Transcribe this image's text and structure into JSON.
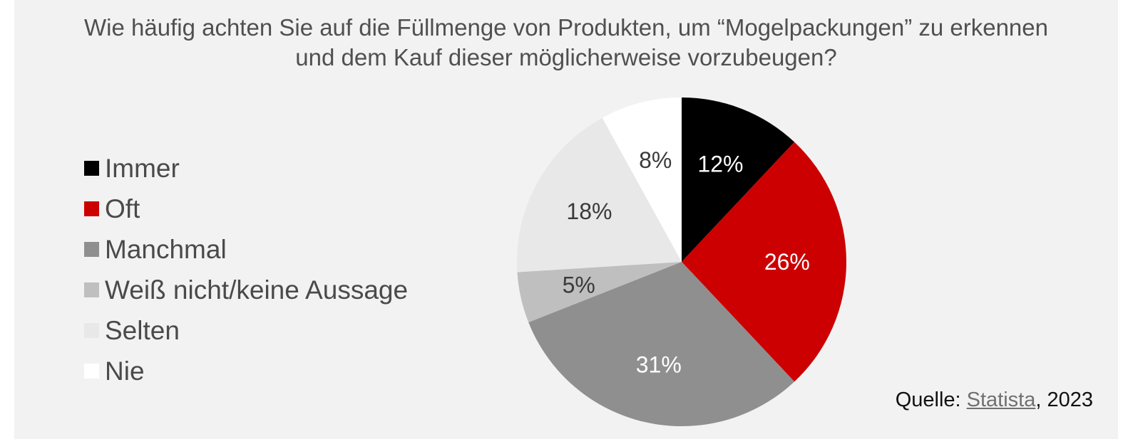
{
  "title_lines": [
    "Wie häufig achten Sie auf die Füllmenge von Produkten, um “Mogelpackungen” zu erkennen",
    "und dem Kauf dieser möglicherweise vorzubeugen?"
  ],
  "source": {
    "prefix": "Quelle: ",
    "link": "Statista",
    "suffix": ", 2023"
  },
  "chart_data": {
    "type": "pie",
    "title": "Wie häufig achten Sie auf die Füllmenge von Produkten, um “Mogelpackungen” zu erkennen und dem Kauf dieser möglicherweise vorzubeugen?",
    "legend_position": "left",
    "start": "top",
    "direction": "clockwise",
    "slices": [
      {
        "label": "Immer",
        "value": 12,
        "display": "12%",
        "color": "#000000",
        "text_color": "#ffffff"
      },
      {
        "label": "Oft",
        "value": 26,
        "display": "26%",
        "color": "#cc0000",
        "text_color": "#ffffff"
      },
      {
        "label": "Manchmal",
        "value": 31,
        "display": "31%",
        "color": "#8f8f8f",
        "text_color": "#ffffff"
      },
      {
        "label": "Weiß nicht/keine Aussage",
        "value": 5,
        "display": "5%",
        "color": "#bfbfbf",
        "text_color": "#3a3a3a"
      },
      {
        "label": "Selten",
        "value": 18,
        "display": "18%",
        "color": "#e8e8e8",
        "text_color": "#3a3a3a"
      },
      {
        "label": "Nie",
        "value": 8,
        "display": "8%",
        "color": "#ffffff",
        "text_color": "#3a3a3a"
      }
    ]
  }
}
